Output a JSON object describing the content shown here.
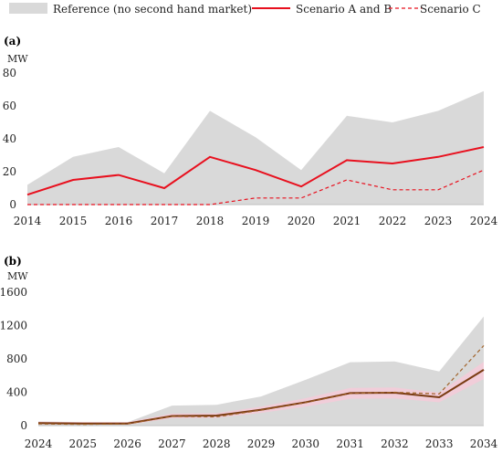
{
  "chart_data": [
    {
      "type": "area",
      "panel_label": "(a)",
      "ylabel": "MW",
      "x": [
        2014,
        2015,
        2016,
        2017,
        2018,
        2019,
        2020,
        2021,
        2022,
        2023,
        2024
      ],
      "xticks": [
        "2014",
        "2015",
        "2016",
        "2017",
        "2018",
        "2019",
        "2020",
        "2021",
        "2022",
        "2023",
        "2024"
      ],
      "yticks": [
        "0",
        "20",
        "40",
        "60",
        "80"
      ],
      "ylim": [
        0,
        80
      ],
      "grid": false,
      "legend_position": "top",
      "series": [
        {
          "name": "Reference (no second hand market)",
          "style": "area",
          "values": [
            12,
            29,
            35,
            19,
            57,
            41,
            21,
            54,
            50,
            57,
            69
          ]
        },
        {
          "name": "Scenario A and B",
          "style": "solid",
          "values": [
            6,
            15,
            18,
            10,
            29,
            21,
            11,
            27,
            25,
            29,
            35
          ]
        },
        {
          "name": "Scenario C",
          "style": "dashed",
          "values": [
            0,
            0,
            0,
            0,
            0,
            4,
            4,
            15,
            9,
            9,
            21
          ]
        }
      ]
    },
    {
      "type": "area",
      "panel_label": "(b)",
      "ylabel": "MW",
      "x": [
        2024,
        2025,
        2026,
        2027,
        2028,
        2029,
        2030,
        2031,
        2032,
        2033,
        2034
      ],
      "xticks": [
        "2024",
        "2025",
        "2026",
        "2027",
        "2028",
        "2029",
        "2030",
        "2031",
        "2032",
        "2033",
        "2034"
      ],
      "yticks": [
        "0",
        "400",
        "800",
        "1200",
        "1600"
      ],
      "ylim": [
        0,
        1600
      ],
      "grid": false,
      "series": [
        {
          "name": "Reference (no second hand market)",
          "style": "area",
          "values": [
            50,
            40,
            40,
            240,
            250,
            350,
            550,
            760,
            770,
            650,
            1310
          ]
        },
        {
          "name": "Scenario A and B",
          "style": "solid",
          "values": [
            30,
            25,
            25,
            115,
            120,
            190,
            280,
            390,
            395,
            340,
            670
          ]
        },
        {
          "name": "Scenario C",
          "style": "dashed",
          "values": [
            20,
            15,
            20,
            110,
            105,
            185,
            275,
            385,
            400,
            380,
            960
          ]
        }
      ]
    }
  ],
  "legend": {
    "reference_label": "Reference (no second hand market)",
    "ab_label": "Scenario A and B",
    "c_label": "Scenario C"
  },
  "colors": {
    "reference": "#d9d9d9",
    "scenario_ab": "#e8101e",
    "scenario_c": "#e8101e",
    "panel_b_ab": "#7a3b12",
    "panel_b_c": "#a0632a",
    "panel_b_band": "#f6c9d8"
  }
}
